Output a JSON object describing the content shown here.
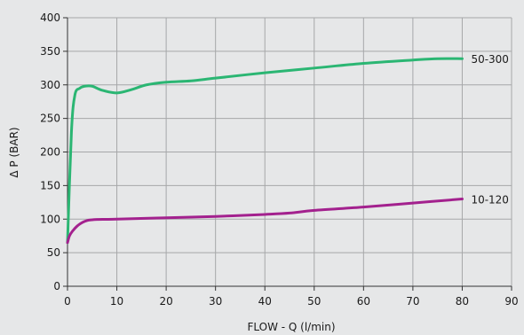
{
  "chart_data": {
    "type": "line",
    "xlabel": "FLOW - Q (l/min)",
    "ylabel": "Δ P (BAR)",
    "xlim": [
      0,
      90
    ],
    "ylim": [
      0,
      400
    ],
    "x_ticks": [
      0,
      10,
      20,
      30,
      40,
      50,
      60,
      70,
      80,
      90
    ],
    "y_ticks": [
      0,
      50,
      100,
      150,
      200,
      250,
      300,
      350,
      400
    ],
    "grid": true,
    "legend": "none",
    "background_color": "#e6e7e8",
    "grid_color": "#a6a7a9",
    "series": [
      {
        "name": "50-300",
        "color": "#2bb673",
        "x": [
          0,
          0.8,
          1.5,
          2.5,
          3.5,
          5,
          7,
          10,
          13,
          16,
          20,
          25,
          30,
          40,
          50,
          60,
          70,
          75,
          80
        ],
        "y": [
          65,
          230,
          285,
          295,
          298,
          298,
          292,
          288,
          293,
          300,
          304,
          306,
          310,
          318,
          325,
          332,
          337,
          339,
          339
        ]
      },
      {
        "name": "10-120",
        "color": "#a3218e",
        "x": [
          0,
          0.4,
          1,
          2,
          3,
          4,
          5,
          6,
          10,
          20,
          30,
          40,
          45,
          50,
          60,
          70,
          80
        ],
        "y": [
          65,
          75,
          82,
          90,
          95,
          98,
          99,
          99.5,
          100,
          102,
          104,
          107,
          109,
          113,
          118,
          124,
          130
        ]
      }
    ]
  }
}
